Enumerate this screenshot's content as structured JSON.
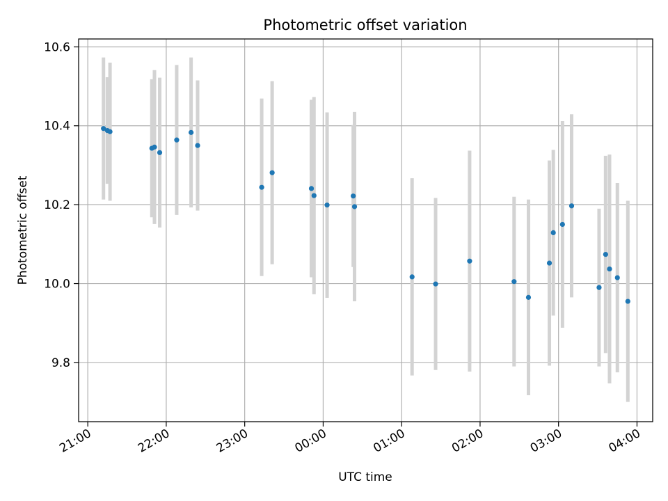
{
  "chart_data": {
    "type": "scatter",
    "title": "Photometric offset variation",
    "xlabel": "UTC time",
    "ylabel": "Photometric offset",
    "x_unit": "UTC time (hours since 21:00 shown as clock times)",
    "xlim": [
      "20:53",
      "04:12"
    ],
    "ylim": [
      9.65,
      10.62
    ],
    "x_ticks": [
      "21:00",
      "22:00",
      "23:00",
      "00:00",
      "01:00",
      "02:00",
      "03:00",
      "04:00"
    ],
    "y_ticks": [
      "9.8",
      "10.0",
      "10.2",
      "10.4",
      "10.6"
    ],
    "y_tick_values": [
      9.8,
      10.0,
      10.2,
      10.4,
      10.6
    ],
    "grid": true,
    "marker_color": "#1f77b4",
    "errorbar_color": "#d3d3d3",
    "points": [
      {
        "time": "21:12",
        "y": 10.393,
        "err": 0.18
      },
      {
        "time": "21:15",
        "y": 10.388,
        "err": 0.135
      },
      {
        "time": "21:17",
        "y": 10.385,
        "err": 0.175
      },
      {
        "time": "21:49",
        "y": 10.343,
        "err": 0.175
      },
      {
        "time": "21:51",
        "y": 10.346,
        "err": 0.195
      },
      {
        "time": "21:55",
        "y": 10.332,
        "err": 0.19
      },
      {
        "time": "22:08",
        "y": 10.364,
        "err": 0.19
      },
      {
        "time": "22:19",
        "y": 10.383,
        "err": 0.19
      },
      {
        "time": "22:24",
        "y": 10.35,
        "err": 0.165
      },
      {
        "time": "23:13",
        "y": 10.244,
        "err": 0.225
      },
      {
        "time": "23:21",
        "y": 10.281,
        "err": 0.232
      },
      {
        "time": "23:51",
        "y": 10.241,
        "err": 0.225
      },
      {
        "time": "23:53",
        "y": 10.223,
        "err": 0.25
      },
      {
        "time": "00:03",
        "y": 10.199,
        "err": 0.235
      },
      {
        "time": "00:23",
        "y": 10.222,
        "err": 0.18
      },
      {
        "time": "00:24",
        "y": 10.195,
        "err": 0.24
      },
      {
        "time": "01:08",
        "y": 10.017,
        "err": 0.25
      },
      {
        "time": "01:26",
        "y": 9.999,
        "err": 0.218
      },
      {
        "time": "01:52",
        "y": 10.057,
        "err": 0.28
      },
      {
        "time": "02:26",
        "y": 10.005,
        "err": 0.215
      },
      {
        "time": "02:37",
        "y": 9.965,
        "err": 0.248
      },
      {
        "time": "02:53",
        "y": 10.052,
        "err": 0.26
      },
      {
        "time": "02:56",
        "y": 10.129,
        "err": 0.21
      },
      {
        "time": "03:03",
        "y": 10.15,
        "err": 0.262
      },
      {
        "time": "03:10",
        "y": 10.197,
        "err": 0.232
      },
      {
        "time": "03:31",
        "y": 9.99,
        "err": 0.2
      },
      {
        "time": "03:36",
        "y": 10.074,
        "err": 0.25
      },
      {
        "time": "03:39",
        "y": 10.037,
        "err": 0.29
      },
      {
        "time": "03:45",
        "y": 10.015,
        "err": 0.24
      },
      {
        "time": "03:53",
        "y": 9.955,
        "err": 0.255
      }
    ]
  }
}
